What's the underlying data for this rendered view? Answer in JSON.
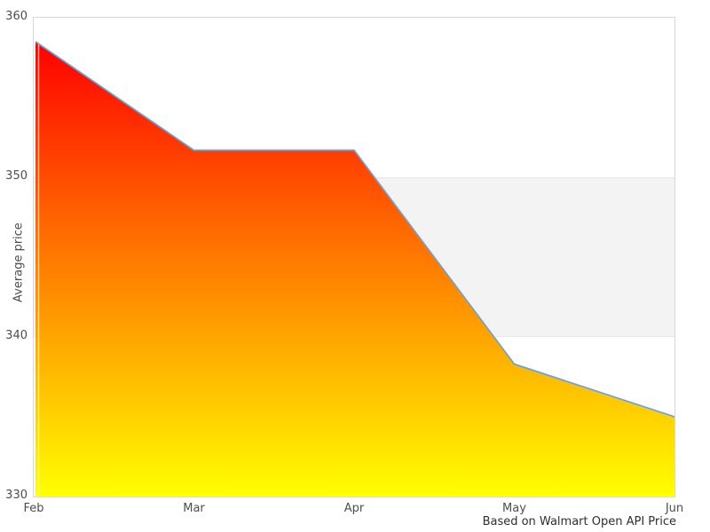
{
  "figure": {
    "ylabel": "Average price",
    "caption": "Based on Walmart Open API Price"
  },
  "chart_data": {
    "type": "area",
    "title": "",
    "xlabel": "",
    "ylabel": "Average price",
    "categories": [
      "Feb",
      "Mar",
      "Apr",
      "May",
      "Jun"
    ],
    "values": [
      358.5,
      351.7,
      351.7,
      338.3,
      335.0
    ],
    "ylim": [
      330,
      360
    ],
    "yticks": [
      360,
      350,
      340,
      330
    ],
    "grid": false,
    "legend": false,
    "plot_band": {
      "from": 340,
      "to": 350,
      "fill": "#f3f3f3",
      "edge": "#e6e6e6"
    },
    "area_gradient_top": "#ff0000",
    "area_gradient_bottom": "#ffff00",
    "line_color": "#6fa1d3",
    "caption": "Based on Walmart Open API Price"
  }
}
